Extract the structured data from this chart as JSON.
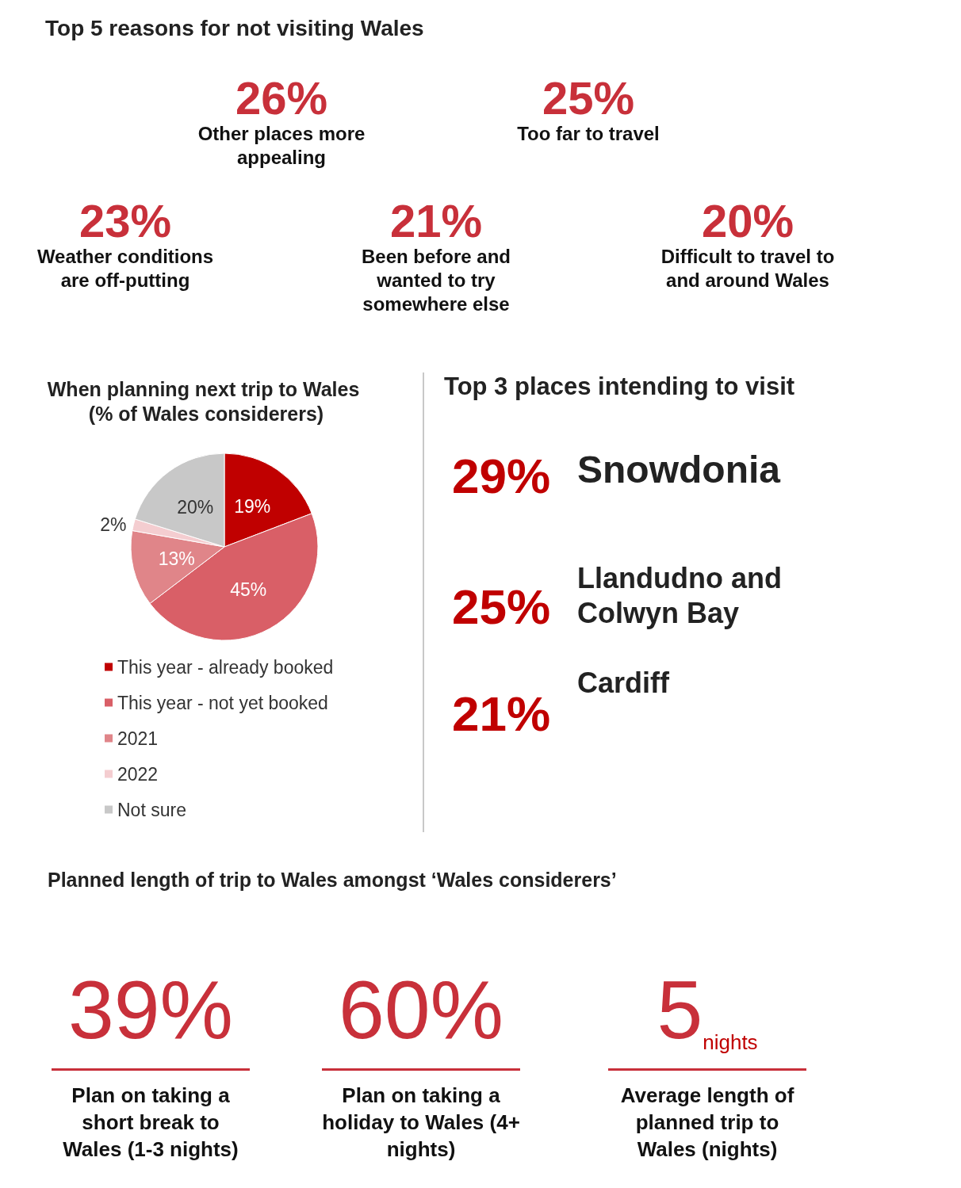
{
  "chart_data": [
    {
      "type": "other",
      "title": "Top 5 reasons for not visiting Wales",
      "annotations": [
        "26%",
        "Other places more appealing",
        "25%",
        "Too far to travel",
        "23%",
        "Weather conditions are off-putting",
        "21%",
        "Been before and wanted to try somewhere else",
        "20%",
        "Difficult to travel to and around Wales"
      ]
    },
    {
      "type": "pie",
      "title": "When planning next trip to Wales (% of Wales considerers)",
      "categories": [
        "This year - already booked",
        "This year - not yet booked",
        "2021",
        "2022",
        "Not sure"
      ],
      "values": [
        19,
        45,
        13,
        2,
        20
      ],
      "colors": [
        "#c00000",
        "#d95f67",
        "#e08589",
        "#f4cdd0",
        "#c8c8c8"
      ],
      "legend": "bottom left",
      "value_labels": [
        "19%",
        "45%",
        "13%",
        "2%",
        "20%"
      ]
    },
    {
      "type": "other",
      "title": "Top 3 places intending to visit",
      "annotations": [
        "29%",
        "Snowdonia",
        "25%",
        "Llandudno and Colwyn Bay",
        "21%",
        "Cardiff"
      ]
    },
    {
      "type": "other",
      "title": "Planned length of trip to Wales amongst ‘Wales considerers’",
      "annotations": [
        "39%",
        "Plan on taking a short break to Wales (1-3 nights)",
        "60%",
        "Plan on taking a holiday to Wales (4+ nights)",
        "5$_{nights}$",
        "Average length of planned trip to Wales (nights)"
      ]
    }
  ]
}
